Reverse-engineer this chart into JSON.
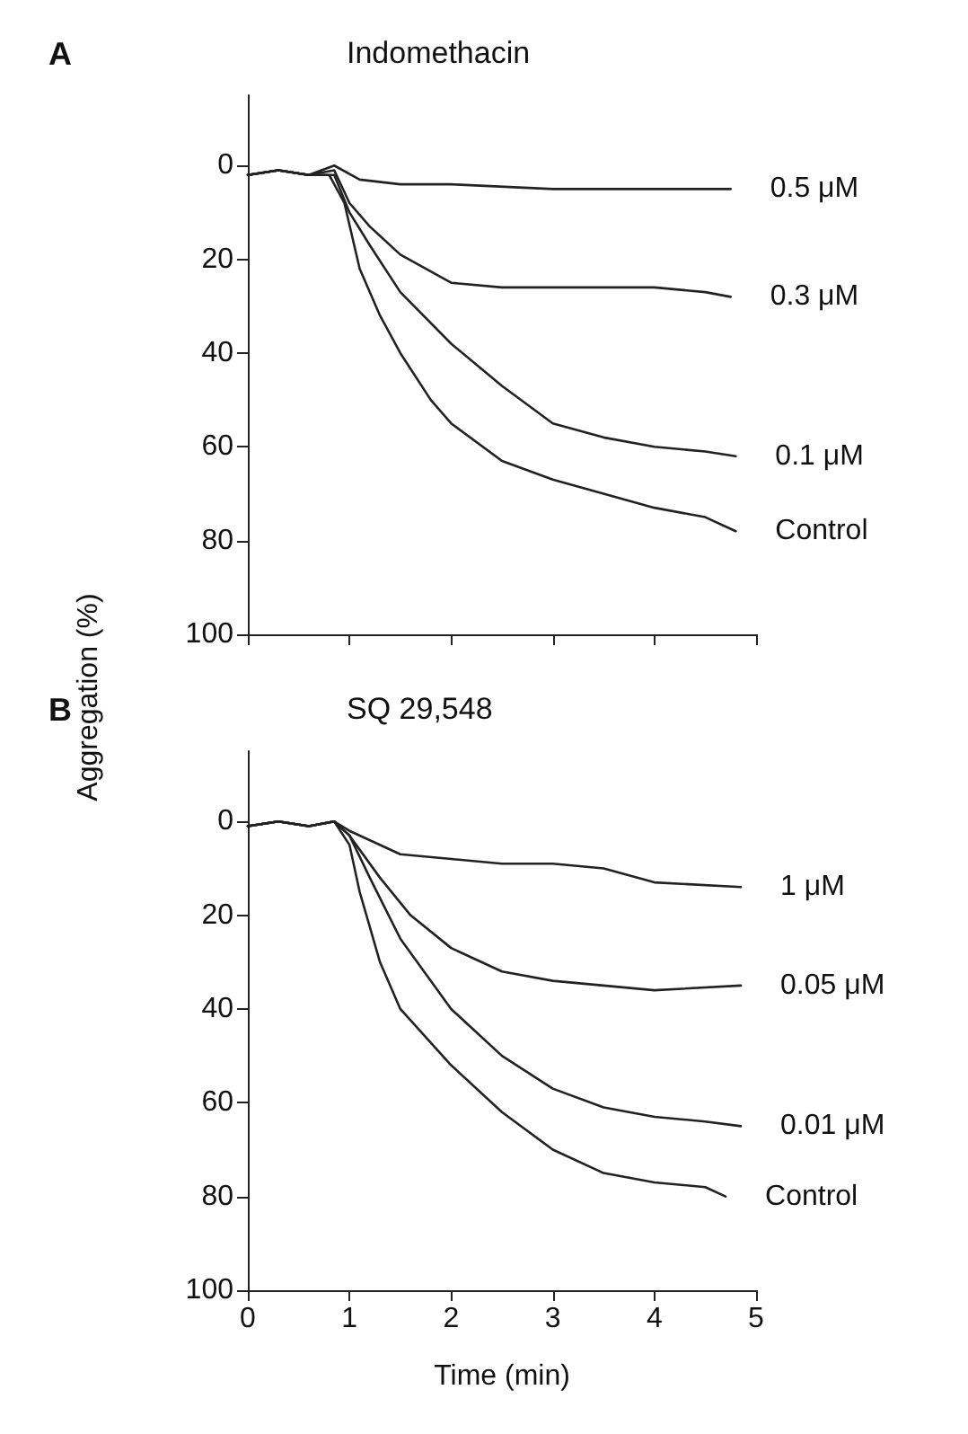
{
  "chart_data": [
    {
      "type": "line",
      "title": "Indomethacin",
      "annotations": [
        "A"
      ],
      "ylabel": "Aggregation (%)",
      "xlim": [
        0,
        5
      ],
      "xticks": [
        0,
        1,
        2,
        3,
        4,
        5
      ],
      "ylim": [
        100,
        -15
      ],
      "yticks": [
        0,
        20,
        40,
        60,
        80,
        100
      ],
      "tick_labels": "y",
      "grid": false,
      "legend": false,
      "marker": "none",
      "line_style": "solid",
      "series": [
        {
          "name": "0.5 μM",
          "color": "#222222",
          "x": [
            0,
            0.3,
            0.6,
            0.85,
            1.1,
            1.5,
            2,
            3,
            4,
            4.75
          ],
          "values": [
            2,
            1,
            2,
            0,
            3,
            4,
            4,
            5,
            5,
            5
          ]
        },
        {
          "name": "0.3 μM",
          "color": "#222222",
          "x": [
            0,
            0.3,
            0.6,
            0.85,
            1,
            1.2,
            1.5,
            2,
            2.5,
            3,
            3.5,
            4,
            4.5,
            4.75
          ],
          "values": [
            2,
            1,
            2,
            1,
            8,
            13,
            19,
            25,
            26,
            26,
            26,
            26,
            27,
            28
          ]
        },
        {
          "name": "0.1 μM",
          "color": "#222222",
          "x": [
            0,
            0.3,
            0.6,
            0.85,
            1,
            1.2,
            1.5,
            2,
            2.5,
            3,
            3.5,
            4,
            4.5,
            4.8
          ],
          "values": [
            2,
            1,
            2,
            2,
            10,
            17,
            27,
            38,
            47,
            55,
            58,
            60,
            61,
            62
          ]
        },
        {
          "name": "Control",
          "color": "#222222",
          "x": [
            0,
            0.3,
            0.6,
            0.8,
            0.95,
            1.1,
            1.3,
            1.5,
            1.8,
            2,
            2.5,
            3,
            3.5,
            4,
            4.5,
            4.8
          ],
          "values": [
            2,
            1,
            2,
            2,
            8,
            22,
            32,
            40,
            50,
            55,
            63,
            67,
            70,
            73,
            75,
            78
          ]
        }
      ]
    },
    {
      "type": "line",
      "title": "SQ 29,548",
      "annotations": [
        "B"
      ],
      "xlabel": "Time (min)",
      "xlim": [
        0,
        5
      ],
      "xticks": [
        0,
        1,
        2,
        3,
        4,
        5
      ],
      "ylim": [
        100,
        -15
      ],
      "yticks": [
        0,
        20,
        40,
        60,
        80,
        100
      ],
      "grid": false,
      "legend": false,
      "marker": "none",
      "line_style": "solid",
      "series": [
        {
          "name": "1 μM",
          "color": "#222222",
          "x": [
            0,
            0.3,
            0.6,
            0.85,
            1,
            1.5,
            2,
            2.5,
            3,
            3.5,
            4,
            4.85
          ],
          "values": [
            1,
            0,
            1,
            0,
            2,
            7,
            8,
            9,
            9,
            10,
            13,
            14
          ]
        },
        {
          "name": "0.05 μM",
          "color": "#222222",
          "x": [
            0,
            0.3,
            0.6,
            0.85,
            1,
            1.3,
            1.6,
            2,
            2.5,
            3,
            3.5,
            4,
            4.85
          ],
          "values": [
            1,
            0,
            1,
            0,
            3,
            12,
            20,
            27,
            32,
            34,
            35,
            36,
            35
          ]
        },
        {
          "name": "0.01 μM",
          "color": "#222222",
          "x": [
            0,
            0.3,
            0.6,
            0.85,
            1,
            1.2,
            1.5,
            2,
            2.5,
            3,
            3.5,
            4,
            4.5,
            4.85
          ],
          "values": [
            1,
            0,
            1,
            0,
            3,
            12,
            25,
            40,
            50,
            57,
            61,
            63,
            64,
            65
          ]
        },
        {
          "name": "Control",
          "color": "#222222",
          "x": [
            0,
            0.3,
            0.6,
            0.85,
            1,
            1.1,
            1.3,
            1.5,
            2,
            2.5,
            3,
            3.5,
            4,
            4.5,
            4.7
          ],
          "values": [
            1,
            0,
            1,
            0,
            5,
            15,
            30,
            40,
            52,
            62,
            70,
            75,
            77,
            78,
            80
          ]
        }
      ]
    }
  ]
}
